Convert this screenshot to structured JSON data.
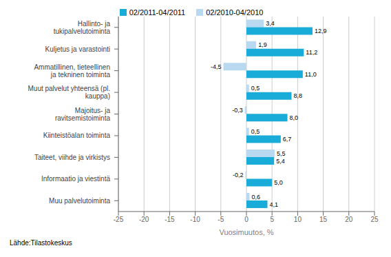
{
  "chart_data": {
    "type": "bar",
    "orientation": "horizontal",
    "categories": [
      "Hallinto- ja tukipalvelutoiminta",
      "Kuljetus ja varastointi",
      "Ammatillinen, tieteellinen ja tekninen toiminta",
      "Muut palvelut yhteensä (pl. kauppa)",
      "Majoitus- ja ravitsemistoiminta",
      "Kiinteistöalan toiminta",
      "Taiteet, viihde ja virkistys",
      "Informaatio ja viestintä",
      "Muu palvelutoiminta"
    ],
    "series": [
      {
        "name": "02/2011-04/2011",
        "color": "#1aacd8",
        "values": [
          12.9,
          11.2,
          11.0,
          8.8,
          8.0,
          6.7,
          5.4,
          5.0,
          4.1
        ],
        "value_labels": [
          "12,9",
          "11,2",
          "11,0",
          "8,8",
          "8,0",
          "6,7",
          "5,4",
          "5,0",
          "4,1"
        ]
      },
      {
        "name": "02/2010-04/2010",
        "color": "#b8d9f0",
        "values": [
          3.4,
          1.9,
          -4.5,
          0.5,
          -0.3,
          0.5,
          5.5,
          -0.2,
          0.6
        ],
        "value_labels": [
          "3,4",
          "1,9",
          "-4,5",
          "0,5",
          "-0,3",
          "0,5",
          "5,5",
          "-0,2",
          "0,6"
        ]
      }
    ],
    "xlabel": "Vuosimuutos, %",
    "xlim": [
      -25,
      25
    ],
    "xticks": [
      -25,
      -20,
      -15,
      -10,
      -5,
      0,
      5,
      10,
      15,
      20,
      25
    ],
    "grid": true,
    "legend": "top",
    "data_labels": true,
    "annotations": [
      "Lähde:Tilastokeskus"
    ]
  }
}
